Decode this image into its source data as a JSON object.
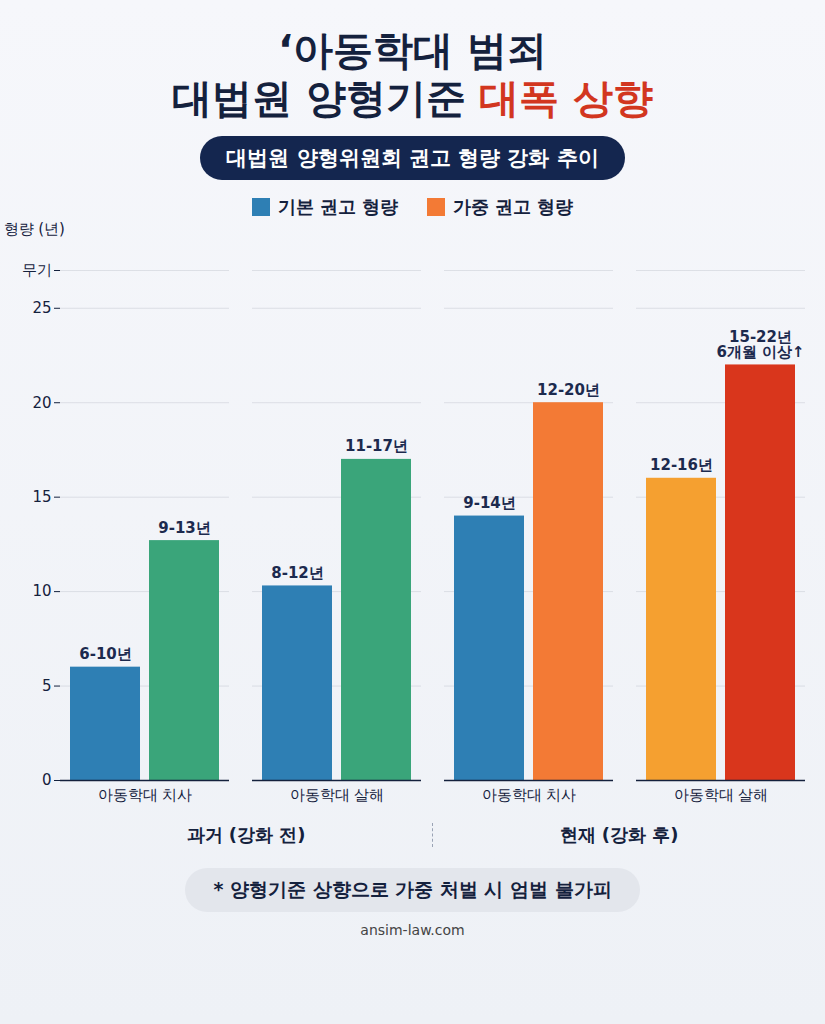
{
  "chart_data": {
    "type": "bar",
    "title": [
      "‘아동학대 범죄",
      "대법원 양형기준 대폭 상향"
    ],
    "title_emphasis": "대폭 상향",
    "subtitle": "대법원 양형위원회 권고 형량 강화 추이",
    "y_label": "형량 (년)",
    "categories": [
      "아동학대 치사",
      "아동학대 살해",
      "아동학대 치사",
      "아동학대 살해"
    ],
    "group_labels": [
      "과거 (강화 전)",
      "현재 (강화 후)"
    ],
    "series": [
      {
        "name": "기본 권고 형량",
        "color": "#2e7fb4",
        "colors": [
          "#2e7fb4",
          "#2e7fb4",
          "#2e7fb4",
          "#f5a030"
        ],
        "values": [
          6,
          10.3,
          14,
          16
        ],
        "annotations": [
          "6-10년",
          "8-12년",
          "9-14년",
          "12-16년"
        ]
      },
      {
        "name": "가중 권고 형량",
        "color": "#f37a35",
        "colors": [
          "#3aa57a",
          "#3aa57a",
          "#f37a35",
          "#d9361c"
        ],
        "values": [
          12.7,
          17,
          20,
          22
        ],
        "annotations": [
          "9-13년",
          "11-17년",
          "12-20년",
          "15-22년\n6개월 이상↑"
        ]
      }
    ],
    "ylim": [
      0,
      27
    ],
    "yticks": [
      0,
      5,
      10,
      15,
      20,
      25,
      {
        "value": 27,
        "label": "무기"
      }
    ],
    "grid": true,
    "legend": "top",
    "note": "* 양형기준 상향으로 가중 처벌 시 엄벌 불가피",
    "source": "ansim-law.com"
  }
}
